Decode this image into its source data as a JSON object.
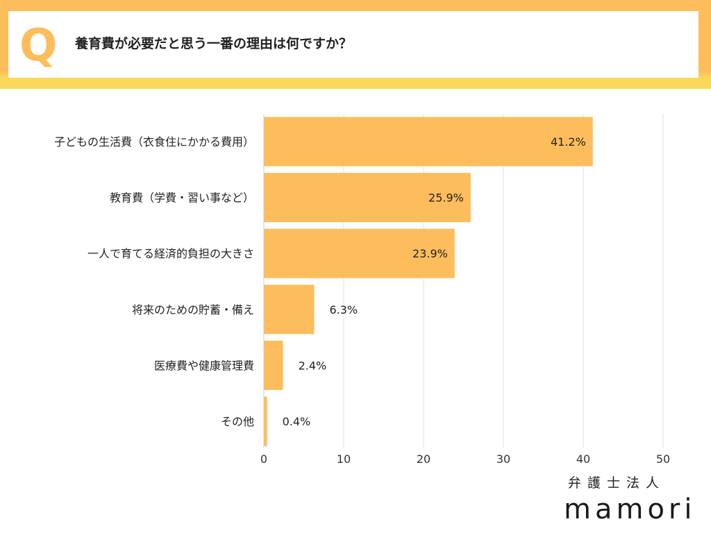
{
  "header": {
    "q_mark": "Q",
    "title": "養育費が必要だと思う一番の理由は何ですか？"
  },
  "logo": {
    "line1": "弁護士法人",
    "line2": "mamori"
  },
  "chart_data": {
    "type": "bar",
    "orientation": "horizontal",
    "title": "養育費が必要だと思う一番の理由は何ですか？",
    "categories": [
      "子どもの生活費（衣食住にかかる費用）",
      "教育費（学費・習い事など）",
      "一人で育てる経済的負担の大きさ",
      "将来のための貯蓄・備え",
      "医療費や健康管理費",
      "その他"
    ],
    "values": [
      41.2,
      25.9,
      23.9,
      6.3,
      2.4,
      0.4
    ],
    "data_labels": [
      "41.2%",
      "25.9%",
      "23.9%",
      "6.3%",
      "2.4%",
      "0.4%"
    ],
    "xlim": [
      0,
      50
    ],
    "xticks": [
      "0",
      "10",
      "20",
      "30",
      "40",
      "50"
    ],
    "grid": true,
    "bar_color": "#fdbd5c"
  }
}
